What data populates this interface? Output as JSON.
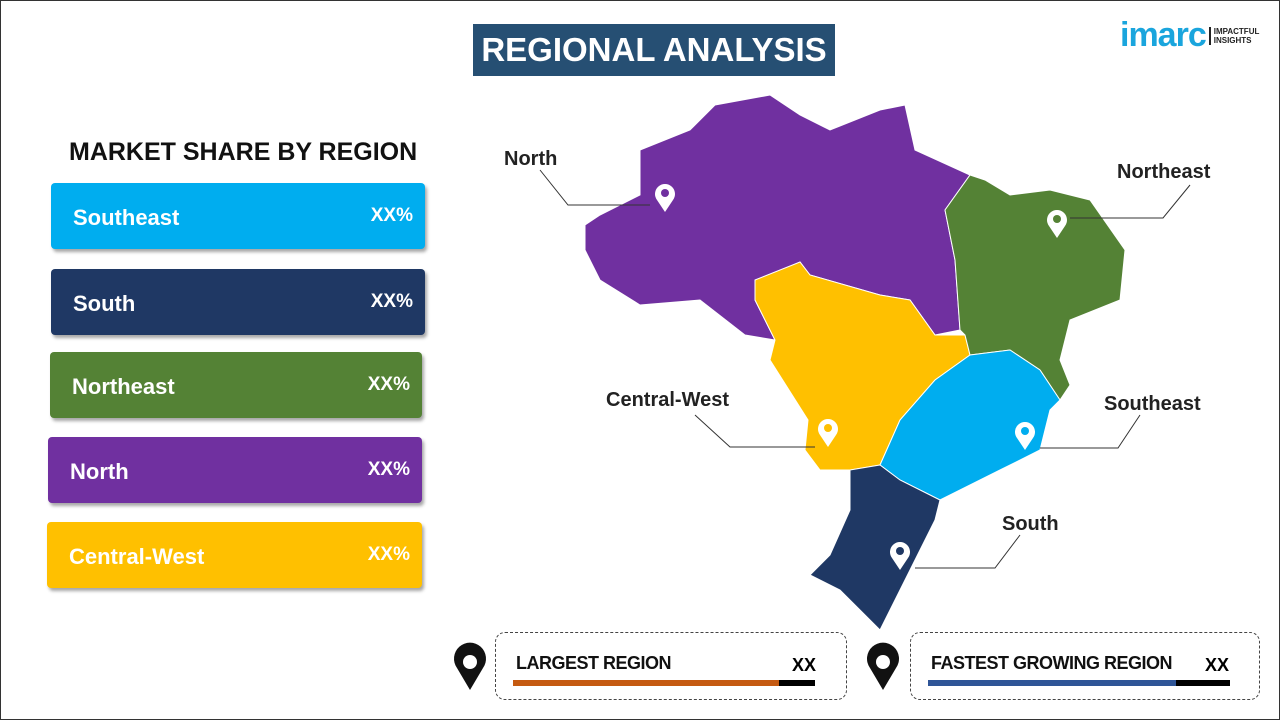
{
  "title": "REGIONAL ANALYSIS",
  "logo": {
    "brand": "imarc",
    "tagline_1": "IMPACTFUL",
    "tagline_2": "INSIGHTS"
  },
  "market_share": {
    "heading": "MARKET SHARE BY REGION",
    "items": [
      {
        "label": "Southeast",
        "value": "XX%",
        "color": "#00adef"
      },
      {
        "label": "South",
        "value": "XX%",
        "color": "#1f3864"
      },
      {
        "label": "Northeast",
        "value": "XX%",
        "color": "#548235"
      },
      {
        "label": "North",
        "value": "XX%",
        "color": "#7030a0"
      },
      {
        "label": "Central-West",
        "value": "XX%",
        "color": "#ffc000"
      }
    ]
  },
  "map_labels": {
    "north": "North",
    "northeast": "Northeast",
    "central_west": "Central-West",
    "southeast": "Southeast",
    "south": "South"
  },
  "cards": {
    "largest": {
      "label": "LARGEST REGION",
      "value": "XX",
      "color": "#c55a11",
      "fill_percent": 88
    },
    "fastest": {
      "label": "FASTEST GROWING REGION",
      "value": "XX",
      "color": "#2f5597",
      "fill_percent": 82
    }
  }
}
